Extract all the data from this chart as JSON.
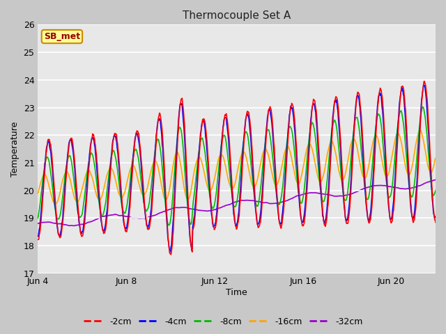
{
  "title": "Thermocouple Set A",
  "xlabel": "Time",
  "ylabel": "Temperature",
  "ylim": [
    17.0,
    26.0
  ],
  "yticks": [
    17.0,
    18.0,
    19.0,
    20.0,
    21.0,
    22.0,
    23.0,
    24.0,
    25.0,
    26.0
  ],
  "fig_bg_color": "#c8c8c8",
  "plot_bg_color": "#e8e8e8",
  "series_colors": {
    "-2cm": "#ff0000",
    "-4cm": "#0000ff",
    "-8cm": "#00bb00",
    "-16cm": "#ffa500",
    "-32cm": "#9900cc"
  },
  "annotation_text": "SB_met",
  "annotation_bg": "#ffff99",
  "annotation_border": "#cc8800",
  "annotation_fg": "#990000",
  "start_day": 4,
  "end_day": 22,
  "tick_days": [
    4,
    8,
    12,
    16,
    20
  ],
  "n_days": 18,
  "pts_per_day": 48
}
